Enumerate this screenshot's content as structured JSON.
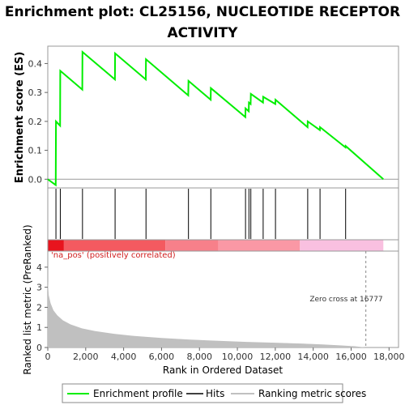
{
  "chart_data": {
    "type": "line",
    "title_line1": "Enrichment plot: CL25156, NUCLEOTIDE RECEPTOR",
    "title_line2": "ACTIVITY",
    "top_panel": {
      "ylabel": "Enrichment score (ES)",
      "ylim": [
        -0.03,
        0.46
      ],
      "yticks": [
        0.0,
        0.1,
        0.2,
        0.3,
        0.4
      ],
      "ytick_labels": [
        "0.0",
        "0.1",
        "0.2",
        "0.3",
        "0.4"
      ],
      "series": [
        {
          "name": "Enrichment profile",
          "color": "#00ee00",
          "points": [
            [
              0,
              0.0
            ],
            [
              420,
              -0.02
            ],
            [
              430,
              0.2
            ],
            [
              650,
              0.185
            ],
            [
              660,
              0.375
            ],
            [
              1820,
              0.31
            ],
            [
              1830,
              0.44
            ],
            [
              3540,
              0.345
            ],
            [
              3550,
              0.435
            ],
            [
              5170,
              0.345
            ],
            [
              5180,
              0.415
            ],
            [
              7410,
              0.29
            ],
            [
              7420,
              0.34
            ],
            [
              8590,
              0.275
            ],
            [
              8600,
              0.315
            ],
            [
              10420,
              0.215
            ],
            [
              10430,
              0.245
            ],
            [
              10600,
              0.235
            ],
            [
              10610,
              0.265
            ],
            [
              10700,
              0.26
            ],
            [
              10710,
              0.295
            ],
            [
              11350,
              0.265
            ],
            [
              11360,
              0.285
            ],
            [
              12000,
              0.26
            ],
            [
              12010,
              0.275
            ],
            [
              13700,
              0.18
            ],
            [
              13710,
              0.2
            ],
            [
              14350,
              0.17
            ],
            [
              14360,
              0.18
            ],
            [
              15700,
              0.11
            ],
            [
              15710,
              0.115
            ],
            [
              17700,
              0.0
            ]
          ]
        }
      ],
      "hline": 0.0
    },
    "hits": [
      430,
      660,
      1830,
      3550,
      5180,
      7420,
      8600,
      10430,
      10610,
      10710,
      11360,
      12010,
      13710,
      14360,
      15710
    ],
    "bottom_panel": {
      "ylabel": "Ranked list metric (PreRanked)",
      "xlabel": "Rank in Ordered Dataset",
      "xlim": [
        0,
        18500
      ],
      "xticks": [
        0,
        2000,
        4000,
        6000,
        8000,
        10000,
        12000,
        14000,
        16000,
        18000
      ],
      "xtick_labels": [
        "0",
        "2,000",
        "4,000",
        "6,000",
        "8,000",
        "10,000",
        "12,000",
        "14,000",
        "16,000",
        "18,000"
      ],
      "ylim": [
        0,
        4.8
      ],
      "yticks": [
        0,
        1,
        2,
        3,
        4
      ],
      "ytick_labels": [
        "0",
        "1",
        "2",
        "3",
        "4"
      ],
      "metric_curve": [
        [
          0,
          3.3
        ],
        [
          50,
          2.6
        ],
        [
          150,
          2.2
        ],
        [
          300,
          1.85
        ],
        [
          500,
          1.6
        ],
        [
          800,
          1.35
        ],
        [
          1200,
          1.15
        ],
        [
          1800,
          0.95
        ],
        [
          2500,
          0.82
        ],
        [
          3500,
          0.68
        ],
        [
          4500,
          0.58
        ],
        [
          6000,
          0.47
        ],
        [
          7500,
          0.39
        ],
        [
          9000,
          0.33
        ],
        [
          10500,
          0.28
        ],
        [
          12000,
          0.24
        ],
        [
          13500,
          0.19
        ],
        [
          14500,
          0.15
        ],
        [
          15500,
          0.1
        ],
        [
          16200,
          0.06
        ],
        [
          16777,
          0.0
        ],
        [
          17700,
          0.0
        ]
      ],
      "zero_cross": 16777,
      "zero_cross_label": "Zero cross at 16777",
      "na_pos_label": "'na_pos' (positively correlated)",
      "fill_color": "#c0c0c0"
    },
    "color_bar": [
      {
        "from": 0,
        "to": 850,
        "color": "#e8141e"
      },
      {
        "from": 850,
        "to": 6200,
        "color": "#f45a60"
      },
      {
        "from": 6200,
        "to": 9000,
        "color": "#f7808a"
      },
      {
        "from": 9000,
        "to": 13300,
        "color": "#fa98a5"
      },
      {
        "from": 13300,
        "to": 17700,
        "color": "#f9c0e0"
      }
    ],
    "legend": [
      {
        "label": "Enrichment profile",
        "color": "#00ee00"
      },
      {
        "label": "Hits",
        "color": "#000000"
      },
      {
        "label": "Ranking metric scores",
        "color": "#c0c0c0"
      }
    ]
  }
}
